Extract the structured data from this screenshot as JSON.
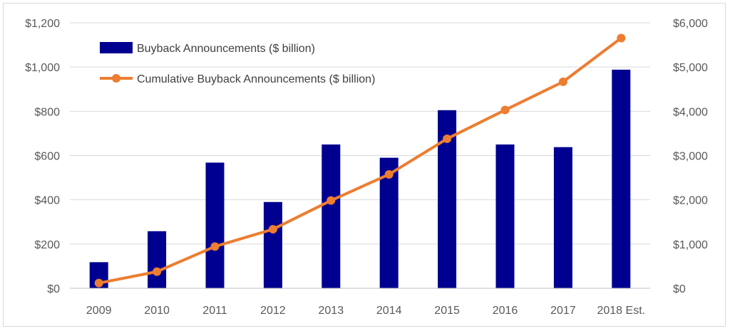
{
  "chart_data": {
    "type": "bar+line",
    "categories": [
      "2009",
      "2010",
      "2011",
      "2012",
      "2013",
      "2014",
      "2015",
      "2016",
      "2017",
      "2018 Est."
    ],
    "series": [
      {
        "name": "Buyback Announcements ($ billion)",
        "type": "bar",
        "axis": "left",
        "color": "#000090",
        "values": [
          118,
          258,
          568,
          390,
          650,
          590,
          805,
          650,
          638,
          988
        ]
      },
      {
        "name": "Cumulative Buyback Announcements ($ billion)",
        "type": "line",
        "axis": "right",
        "color": "#ED7D31",
        "values": [
          118,
          376,
          944,
          1334,
          1984,
          2574,
          3379,
          4029,
          4667,
          5655
        ]
      }
    ],
    "y_left": {
      "lim": [
        0,
        1200
      ],
      "ticks": [
        "$0",
        "$200",
        "$400",
        "$600",
        "$800",
        "$1,000",
        "$1,200"
      ]
    },
    "y_right": {
      "lim": [
        0,
        6000
      ],
      "ticks": [
        "$0",
        "$1,000",
        "$2,000",
        "$3,000",
        "$4,000",
        "$5,000",
        "$6,000"
      ]
    },
    "grid": true,
    "legend_position": "top-left"
  }
}
